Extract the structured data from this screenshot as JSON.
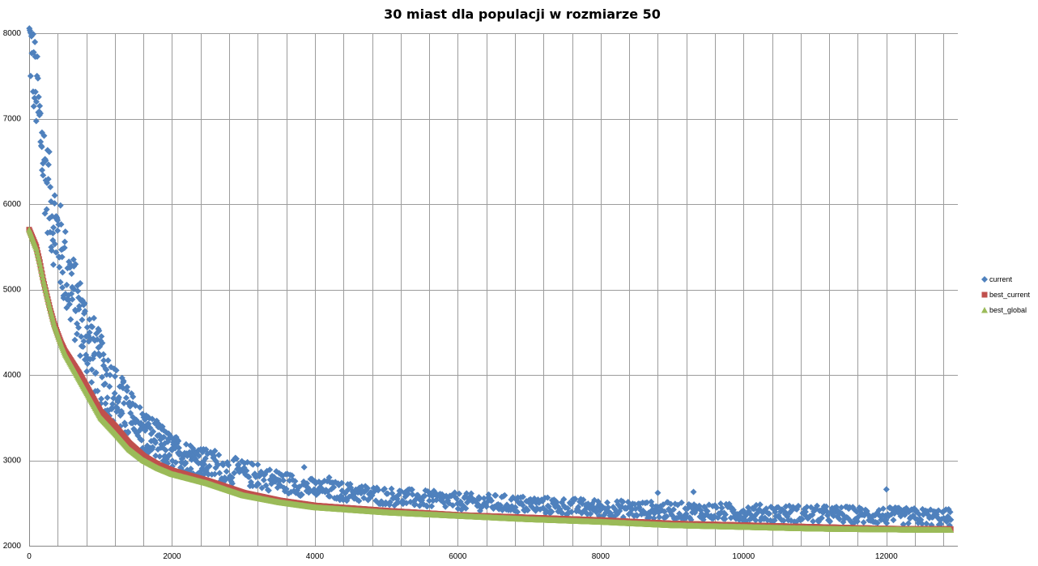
{
  "chart_data": {
    "type": "scatter",
    "title": "30 miast dla populacji w  rozmiarze 50",
    "xlabel": "",
    "ylabel": "",
    "xlim": [
      0,
      13000
    ],
    "ylim": [
      2000,
      8000
    ],
    "x_ticks": [
      0,
      2000,
      4000,
      6000,
      8000,
      10000,
      12000
    ],
    "y_ticks": [
      2000,
      3000,
      4000,
      5000,
      6000,
      7000,
      8000
    ],
    "grid": true,
    "legend_position": "right",
    "series": [
      {
        "name": "current",
        "color": "#4f81bd",
        "marker": "diamond",
        "points_trend": [
          [
            0,
            7900
          ],
          [
            50,
            7600
          ],
          [
            100,
            7300
          ],
          [
            150,
            6900
          ],
          [
            200,
            6500
          ],
          [
            250,
            6200
          ],
          [
            300,
            5950
          ],
          [
            400,
            5600
          ],
          [
            500,
            5250
          ],
          [
            600,
            4950
          ],
          [
            700,
            4700
          ],
          [
            800,
            4450
          ],
          [
            900,
            4250
          ],
          [
            1000,
            4050
          ],
          [
            1200,
            3750
          ],
          [
            1400,
            3500
          ],
          [
            1600,
            3320
          ],
          [
            1800,
            3200
          ],
          [
            2000,
            3100
          ],
          [
            2500,
            2950
          ],
          [
            3000,
            2850
          ],
          [
            3500,
            2750
          ],
          [
            4000,
            2670
          ],
          [
            5000,
            2580
          ],
          [
            6000,
            2520
          ],
          [
            7000,
            2480
          ],
          [
            8000,
            2440
          ],
          [
            9000,
            2410
          ],
          [
            10000,
            2390
          ],
          [
            11000,
            2370
          ],
          [
            12000,
            2350
          ],
          [
            12900,
            2330
          ]
        ],
        "spread_trend": [
          [
            0,
            500
          ],
          [
            300,
            550
          ],
          [
            600,
            500
          ],
          [
            1000,
            420
          ],
          [
            1500,
            320
          ],
          [
            2000,
            200
          ],
          [
            3000,
            150
          ],
          [
            4000,
            110
          ],
          [
            6000,
            100
          ],
          [
            9000,
            100
          ],
          [
            12900,
            100
          ]
        ],
        "outliers": [
          [
            2600,
            3110
          ],
          [
            3200,
            2950
          ],
          [
            3500,
            2850
          ],
          [
            3850,
            2920
          ],
          [
            4200,
            2800
          ],
          [
            8800,
            2620
          ],
          [
            9300,
            2630
          ],
          [
            12000,
            2660
          ]
        ]
      },
      {
        "name": "best_current",
        "color": "#c0504d",
        "marker": "square",
        "points_trend": [
          [
            0,
            5700
          ],
          [
            100,
            5500
          ],
          [
            150,
            5320
          ],
          [
            200,
            5100
          ],
          [
            250,
            4920
          ],
          [
            300,
            4750
          ],
          [
            350,
            4600
          ],
          [
            400,
            4480
          ],
          [
            450,
            4370
          ],
          [
            500,
            4280
          ],
          [
            600,
            4150
          ],
          [
            700,
            4020
          ],
          [
            800,
            3870
          ],
          [
            900,
            3720
          ],
          [
            1000,
            3570
          ],
          [
            1200,
            3400
          ],
          [
            1400,
            3200
          ],
          [
            1600,
            3050
          ],
          [
            1800,
            2950
          ],
          [
            2000,
            2880
          ],
          [
            2500,
            2760
          ],
          [
            3000,
            2620
          ],
          [
            3500,
            2530
          ],
          [
            4000,
            2470
          ],
          [
            5000,
            2410
          ],
          [
            6000,
            2360
          ],
          [
            7000,
            2330
          ],
          [
            8000,
            2300
          ],
          [
            9000,
            2260
          ],
          [
            10000,
            2240
          ],
          [
            11000,
            2220
          ],
          [
            12000,
            2200
          ],
          [
            12900,
            2195
          ]
        ]
      },
      {
        "name": "best_global",
        "color": "#9bbb59",
        "marker": "triangle",
        "points_trend": [
          [
            0,
            5700
          ],
          [
            100,
            5480
          ],
          [
            150,
            5300
          ],
          [
            200,
            5100
          ],
          [
            250,
            4920
          ],
          [
            300,
            4750
          ],
          [
            350,
            4590
          ],
          [
            400,
            4470
          ],
          [
            450,
            4350
          ],
          [
            500,
            4250
          ],
          [
            600,
            4100
          ],
          [
            700,
            3950
          ],
          [
            800,
            3800
          ],
          [
            900,
            3650
          ],
          [
            1000,
            3500
          ],
          [
            1200,
            3320
          ],
          [
            1400,
            3130
          ],
          [
            1600,
            3000
          ],
          [
            1800,
            2910
          ],
          [
            2000,
            2840
          ],
          [
            2500,
            2730
          ],
          [
            3000,
            2590
          ],
          [
            3500,
            2510
          ],
          [
            4000,
            2450
          ],
          [
            5000,
            2390
          ],
          [
            6000,
            2350
          ],
          [
            7000,
            2310
          ],
          [
            8000,
            2280
          ],
          [
            9000,
            2240
          ],
          [
            10000,
            2220
          ],
          [
            11000,
            2200
          ],
          [
            12000,
            2190
          ],
          [
            12900,
            2185
          ]
        ]
      }
    ]
  }
}
